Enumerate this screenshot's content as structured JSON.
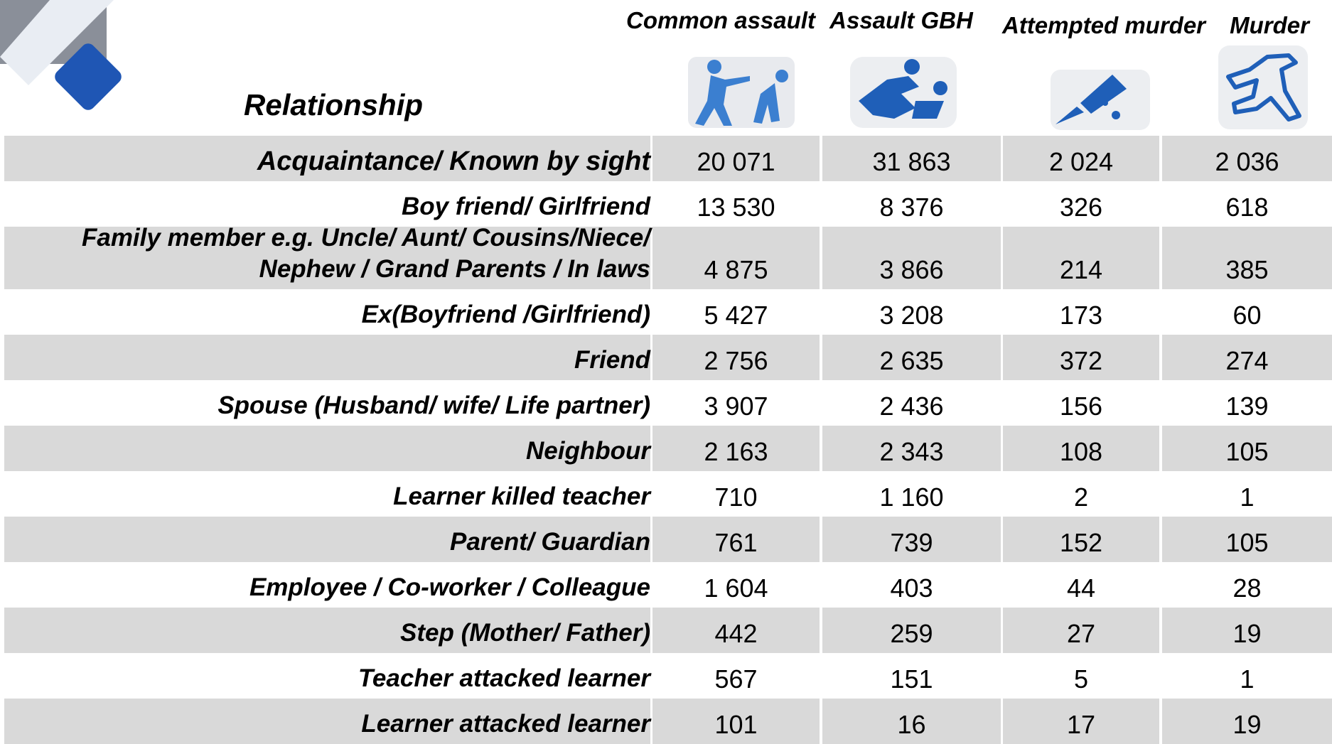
{
  "header": {
    "title": "Relationship",
    "columns": [
      "Common assault",
      "Assault GBH",
      "Attempted murder",
      "Murder"
    ]
  },
  "table": {
    "rows": [
      {
        "label": [
          "Acquaintance/ Known by sight"
        ],
        "values": [
          "20 071",
          "31 863",
          "2 024",
          "2 036"
        ]
      },
      {
        "label": [
          "Boy friend/ Girlfriend"
        ],
        "values": [
          "13 530",
          "8 376",
          "326",
          "618"
        ]
      },
      {
        "label": [
          "Family member e.g. Uncle/ Aunt/ Cousins/Niece/",
          "Nephew / Grand Parents / In laws"
        ],
        "values": [
          "4 875",
          "3 866",
          "214",
          "385"
        ]
      },
      {
        "label": [
          "Ex(Boyfriend /Girlfriend)"
        ],
        "values": [
          "5 427",
          "3 208",
          "173",
          "60"
        ]
      },
      {
        "label": [
          "Friend"
        ],
        "values": [
          "2 756",
          "2 635",
          "372",
          "274"
        ]
      },
      {
        "label": [
          "Spouse (Husband/ wife/ Life partner)"
        ],
        "values": [
          "3 907",
          "2 436",
          "156",
          "139"
        ]
      },
      {
        "label": [
          "Neighbour"
        ],
        "values": [
          "2 163",
          "2 343",
          "108",
          "105"
        ]
      },
      {
        "label": [
          "Learner killed teacher"
        ],
        "values": [
          "710",
          "1 160",
          "2",
          "1"
        ]
      },
      {
        "label": [
          "Parent/ Guardian"
        ],
        "values": [
          "761",
          "739",
          "152",
          "105"
        ]
      },
      {
        "label": [
          "Employee / Co-worker / Colleague"
        ],
        "values": [
          "1 604",
          "403",
          "44",
          "28"
        ]
      },
      {
        "label": [
          "Step (Mother/ Father)"
        ],
        "values": [
          "442",
          "259",
          "27",
          "19"
        ]
      },
      {
        "label": [
          "Teacher attacked learner"
        ],
        "values": [
          "567",
          "151",
          "5",
          "1"
        ]
      },
      {
        "label": [
          "Learner attacked learner"
        ],
        "values": [
          "101",
          "16",
          "17",
          "19"
        ]
      }
    ]
  }
}
